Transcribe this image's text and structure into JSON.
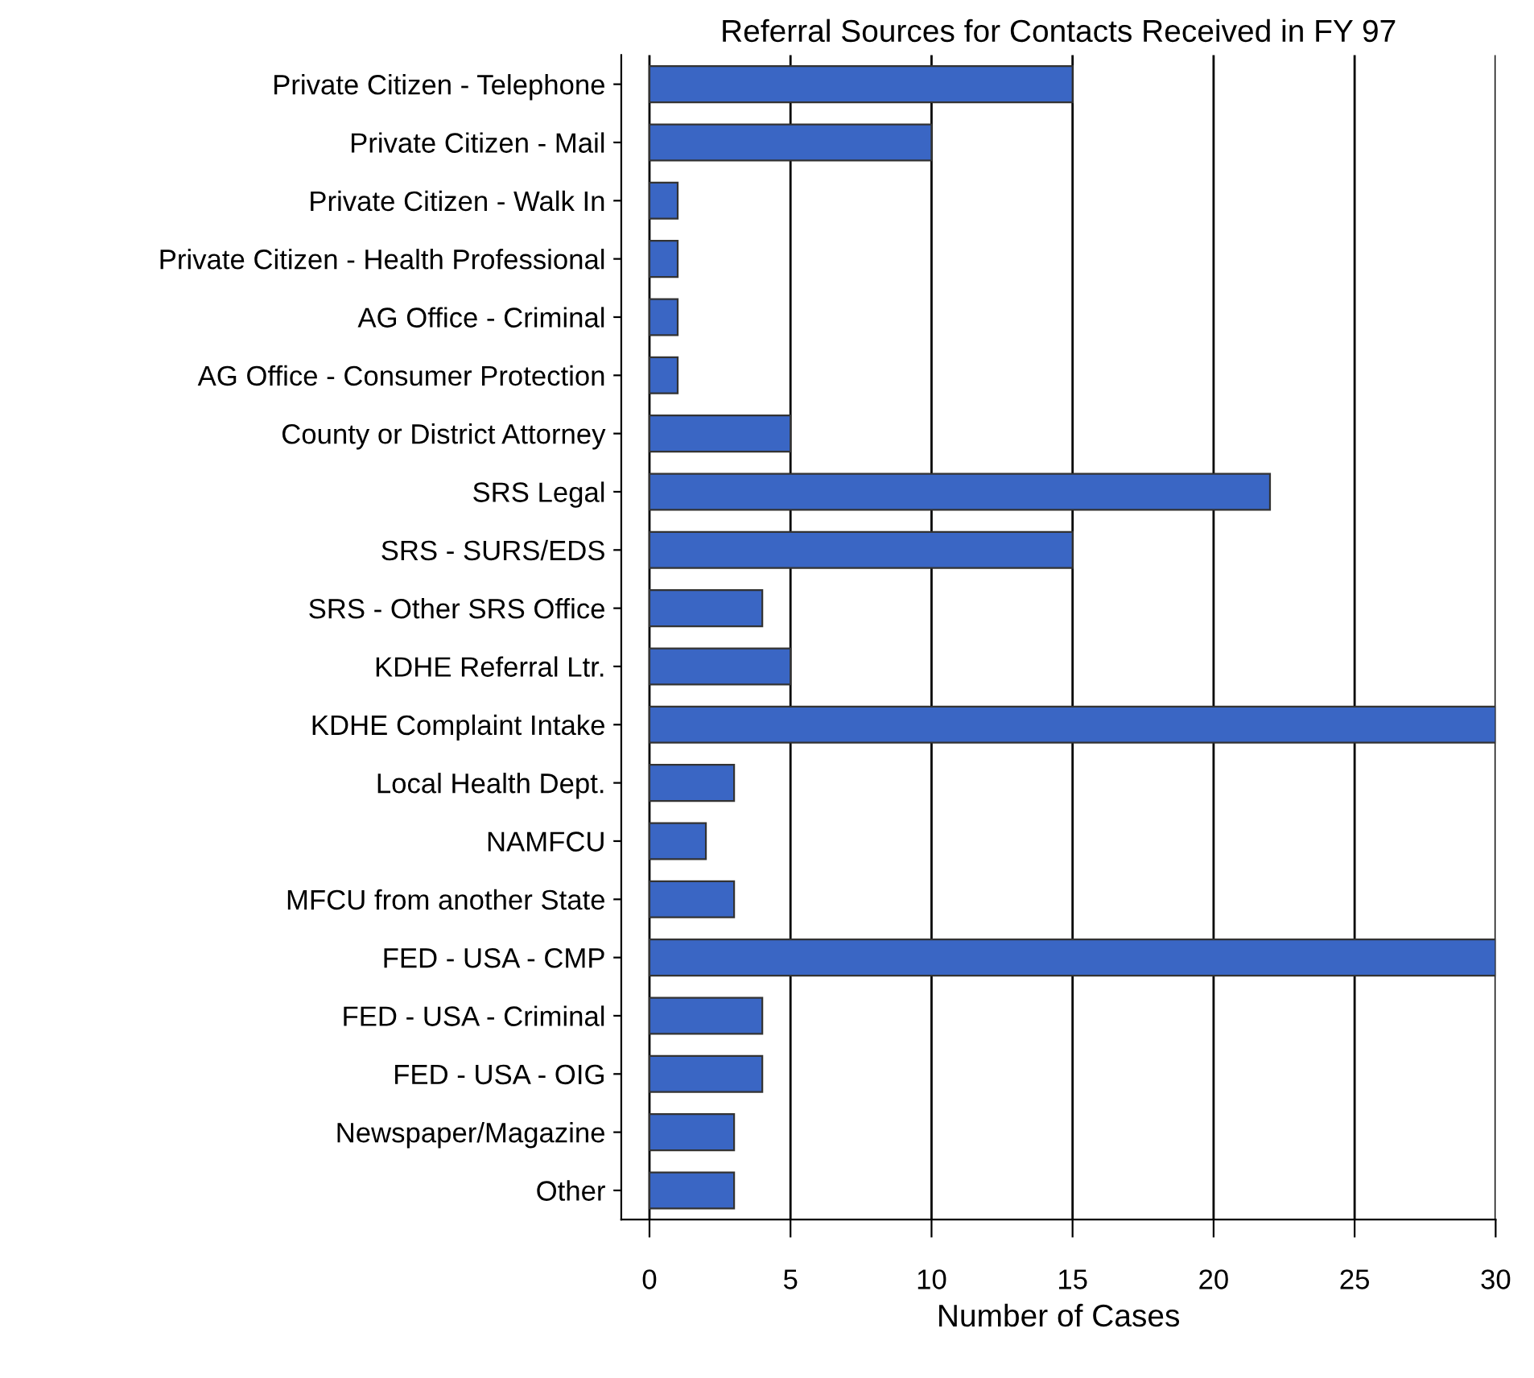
{
  "chart_data": {
    "type": "bar",
    "orientation": "horizontal",
    "title": "Referral Sources for Contacts Received in FY 97",
    "xlabel": "Number of Cases",
    "categories": [
      "Private Citizen - Telephone",
      "Private Citizen - Mail",
      "Private Citizen - Walk In",
      "Private Citizen - Health Professional",
      "AG Office - Criminal",
      "AG Office - Consumer Protection",
      "County or District Attorney",
      "SRS Legal",
      "SRS - SURS/EDS",
      "SRS - Other SRS Office",
      "KDHE Referral Ltr.",
      "KDHE Complaint Intake",
      "Local Health Dept.",
      "NAMFCU",
      "MFCU from another State",
      "FED - USA - CMP",
      "FED - USA - Criminal",
      "FED - USA - OIG",
      "Newspaper/Magazine",
      "Other"
    ],
    "values": [
      15,
      10,
      1,
      1,
      1,
      1,
      5,
      22,
      15,
      4,
      5,
      30,
      3,
      2,
      3,
      30,
      4,
      4,
      3,
      3
    ],
    "color": "#3a66c4",
    "xlim": [
      -1,
      30
    ],
    "xticks": [
      0,
      5,
      10,
      15,
      20,
      25,
      30
    ],
    "grid": "x",
    "legend": false
  }
}
